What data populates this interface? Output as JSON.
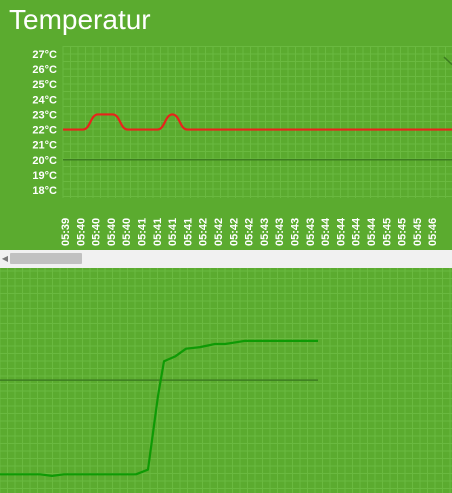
{
  "title": "Temperatur",
  "colors": {
    "background": "#5bab2f",
    "grid": "#6ab940",
    "baseline": "#3d7d20",
    "series_red": "#e8231b",
    "series_green": "#0f9a05",
    "text": "#ffffff"
  },
  "chart_data": [
    {
      "type": "line",
      "ylabels": [
        "27°C",
        "26°C",
        "25°C",
        "24°C",
        "23°C",
        "22°C",
        "21°C",
        "20°C",
        "19°C",
        "18°C"
      ],
      "ylim": [
        18,
        27
      ],
      "xlabels": [
        "05:39",
        "05:40",
        "05:40",
        "05:40",
        "05:40",
        "05:41",
        "05:41",
        "05:41",
        "05:41",
        "05:42",
        "05:42",
        "05:42",
        "05:42",
        "05:43",
        "05:43",
        "05:43",
        "05:43",
        "05:44",
        "05:44",
        "05:44",
        "05:44",
        "05:45",
        "05:45",
        "05:45",
        "05:46"
      ],
      "reference_line": 20,
      "series": [
        {
          "color": "#e8231b",
          "values": [
            22,
            22,
            23,
            23,
            22,
            22,
            22,
            23,
            22,
            22,
            22,
            22,
            22,
            22,
            22,
            22,
            22,
            22,
            22,
            22,
            22,
            22,
            22,
            22,
            22
          ]
        }
      ]
    },
    {
      "type": "line",
      "series": [
        {
          "color": "#0f9a05",
          "values": [
            0.1,
            0.1,
            0.09,
            0.1,
            0.1,
            0.1,
            0.1,
            0.1,
            0.13,
            0.6,
            0.82,
            0.85,
            0.9,
            0.91,
            0.93,
            0.93,
            0.94,
            0.95,
            0.95,
            0.95,
            0.95
          ]
        }
      ],
      "reference_value": 0.7
    }
  ]
}
